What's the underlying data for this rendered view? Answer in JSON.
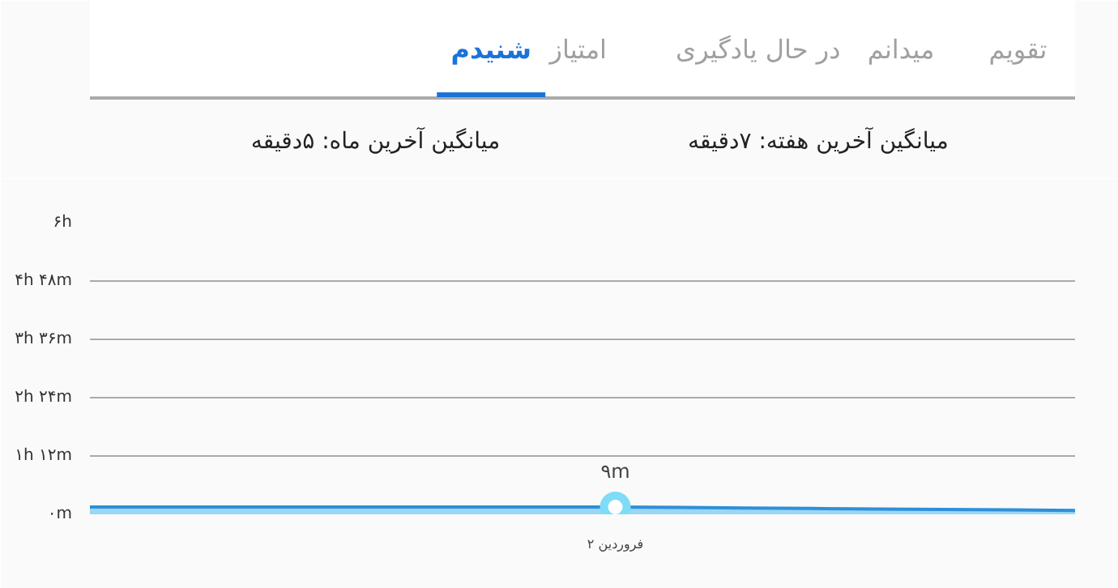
{
  "chart_data": {
    "type": "area",
    "title": "میانگین آخرین هفته: ۷دقیقه",
    "subtitle": "میانگین آخرین ماه: ۵دقیقه",
    "annotations": [
      "تقویم",
      "میدانم",
      "در حال یادگیری",
      "امتیاز",
      "شنیدم",
      {
        "text": "۹m",
        "x": "۲ فروردین",
        "y": 0.15
      }
    ],
    "categories": [
      null,
      null,
      null,
      null,
      null,
      null,
      null,
      null,
      "۲ فروردین",
      null,
      null,
      null,
      null,
      null,
      null,
      null
    ],
    "series": [
      {
        "color": "#2f8fd8",
        "values": [
          0.15,
          0.15,
          0.15,
          0.15,
          0.15,
          0.15,
          0.15,
          0.15,
          0.15,
          0.14,
          0.13,
          0.12,
          0.11,
          0.1,
          0.09,
          0.08
        ]
      }
    ],
    "ylim": [
      0,
      6
    ],
    "yticks": [
      {
        "value": 0,
        "label": "۰m"
      },
      {
        "value": 1.2,
        "label": "۱h ۱۲m"
      },
      {
        "value": 2.4,
        "label": "۲h ۲۴m"
      },
      {
        "value": 3.6,
        "label": "۳h ۳۶m"
      },
      {
        "value": 4.8,
        "label": "۴h ۴۸m"
      },
      {
        "value": 6,
        "label": "۶h"
      }
    ],
    "grid": "y"
  }
}
